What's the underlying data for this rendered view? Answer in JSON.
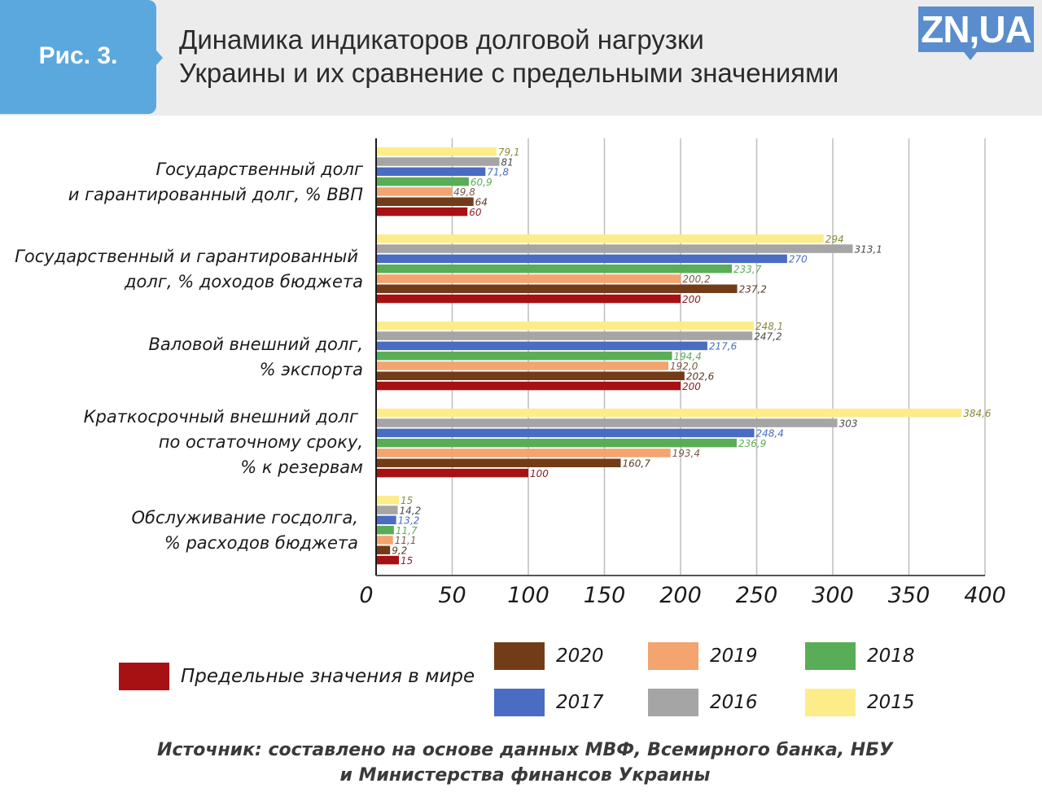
{
  "header": {
    "figure_label": "Рис. 3.",
    "title_line1": "Динамика индикаторов долговой нагрузки",
    "title_line2": "Украины и их сравнение с предельными значениями",
    "logo_text": "ZN,UA"
  },
  "colors": {
    "header_bg": "#ececec",
    "badge": "#5aa8de",
    "logo": "#5a8dcd"
  },
  "chart_data": {
    "type": "bar",
    "orientation": "horizontal",
    "title": "Динамика индикаторов долговой нагрузки Украины и их сравнение с предельными значениями",
    "xlabel": "",
    "ylabel": "",
    "xlim": [
      0,
      400
    ],
    "x_ticks": [
      "0",
      "50",
      "100",
      "150",
      "200",
      "250",
      "300",
      "350",
      "400"
    ],
    "grid": true,
    "legend_position": "bottom",
    "categories": [
      {
        "line1": "Государственный долг",
        "line2": "и гарантированный долг, % ВВП"
      },
      {
        "line1": "Государственный и гарантированный",
        "line2": "долг, % доходов бюджета"
      },
      {
        "line1": "Валовой внешний долг,",
        "line2": "% экспорта"
      },
      {
        "line1": "Краткосрочный внешний долг",
        "line2": "по остаточному сроку,",
        "line3": "% к резервам"
      },
      {
        "line1": "Обслуживание госдолга,",
        "line2": "% расходов бюджета"
      }
    ],
    "series": [
      {
        "name": "2015",
        "color": "#fdec8a",
        "label_color": "#8a8a3a",
        "values": [
          79.1,
          294,
          248.1,
          384.6,
          15
        ],
        "labels": [
          "79,1",
          "294",
          "248,1",
          "384,6",
          "15"
        ]
      },
      {
        "name": "2016",
        "color": "#a5a5a5",
        "label_color": "#4a4a4a",
        "values": [
          81,
          313.1,
          247.2,
          303,
          14.2
        ],
        "labels": [
          "81",
          "313,1",
          "247,2",
          "303",
          "14,2"
        ]
      },
      {
        "name": "2017",
        "color": "#4a6cc2",
        "label_color": "#4a6cc2",
        "values": [
          71.8,
          270,
          217.6,
          248.4,
          13.2
        ],
        "labels": [
          "71,8",
          "270",
          "217,6",
          "248,4",
          "13,2"
        ]
      },
      {
        "name": "2018",
        "color": "#5aad57",
        "label_color": "#5aad57",
        "values": [
          60.9,
          233.7,
          194.4,
          236.9,
          11.7
        ],
        "labels": [
          "60,9",
          "233,7",
          "194,4",
          "236,9",
          "11,7"
        ]
      },
      {
        "name": "2019",
        "color": "#f3a46f",
        "label_color": "#7a5a4a",
        "values": [
          49.8,
          200.2,
          192.0,
          193.4,
          11.1
        ],
        "labels": [
          "49,8",
          "200,2",
          "192,0",
          "193,4",
          "11,1"
        ]
      },
      {
        "name": "2020",
        "color": "#733c18",
        "label_color": "#5a3a24",
        "values": [
          64,
          237.2,
          202.6,
          160.7,
          9.2
        ],
        "labels": [
          "64",
          "237,2",
          "202,6",
          "160,7",
          "9,2"
        ]
      },
      {
        "name": "Предельные значения в мире",
        "color": "#a81114",
        "label_color": "#8a1f2a",
        "values": [
          60,
          200,
          200,
          100,
          15
        ],
        "labels": [
          "60",
          "200",
          "200",
          "100",
          "15"
        ]
      }
    ]
  },
  "legend": {
    "limit_label": "Предельные значения в мире",
    "years": [
      "2020",
      "2019",
      "2018",
      "2017",
      "2016",
      "2015"
    ]
  },
  "source": {
    "line1": "Источник: составлено на основе данных МВФ, Всемирного банка, НБУ",
    "line2": "и Министерства финансов Украины"
  }
}
